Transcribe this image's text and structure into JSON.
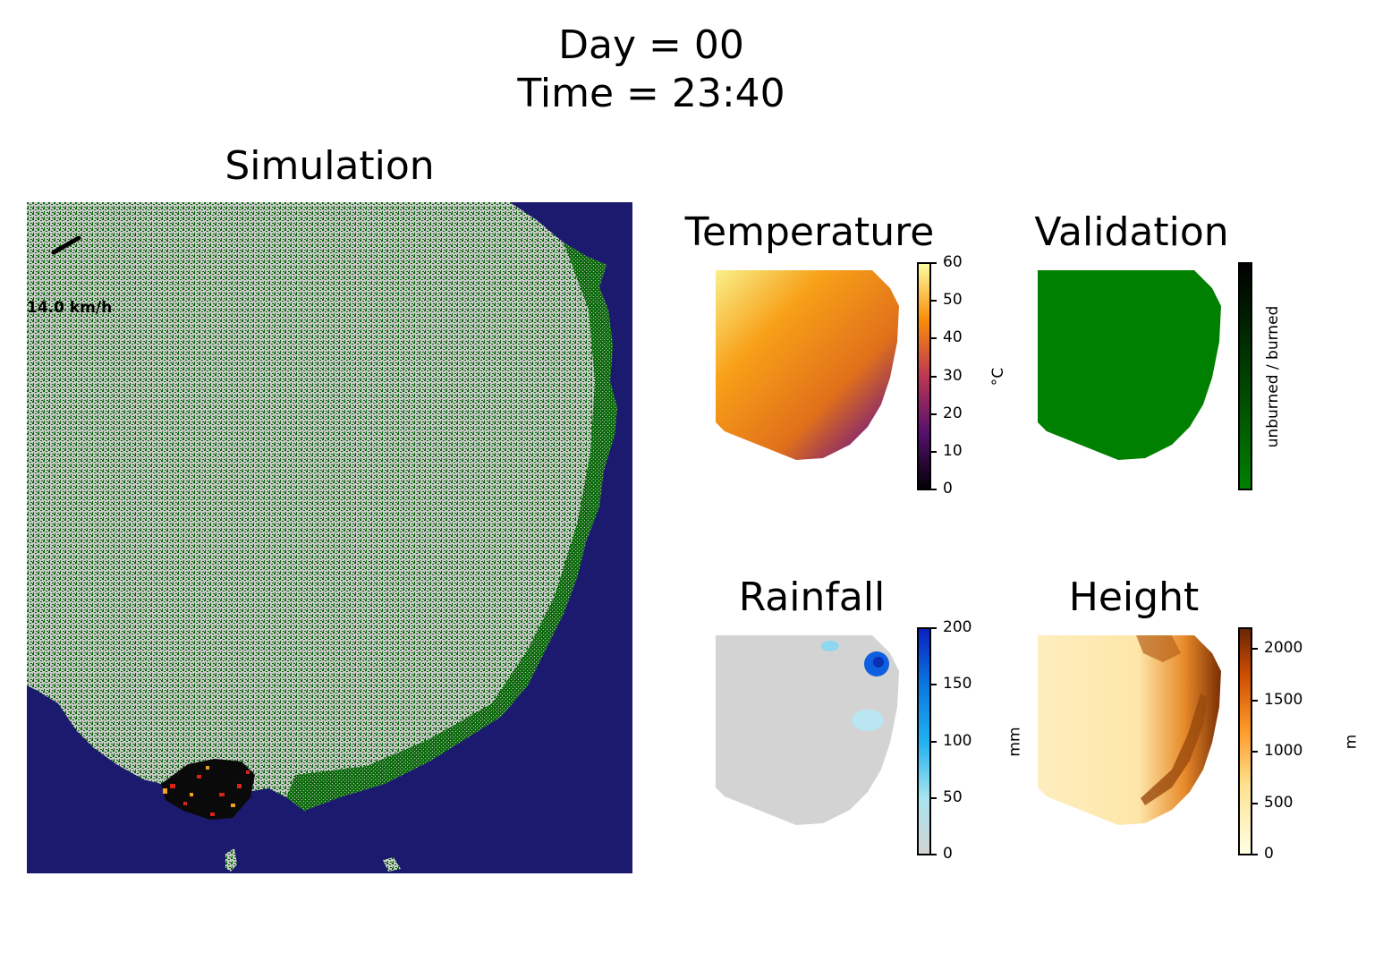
{
  "figure": {
    "title_line1": "Day = 00",
    "title_line2": "Time = 23:40"
  },
  "simulation": {
    "title": "Simulation",
    "wind_label": "14.0 km/h",
    "colors": {
      "ocean": "#1b1a6e",
      "vegetation": "#006400",
      "bare": "#c8c8c8",
      "fire_red": "#d62418",
      "fire_orange": "#f5a020",
      "burned": "#0a0a0a"
    }
  },
  "temperature": {
    "title": "Temperature",
    "unit": "°C",
    "ticks": [
      "0",
      "10",
      "20",
      "30",
      "40",
      "50",
      "60"
    ],
    "range": [
      0,
      60
    ],
    "colormap": "inferno"
  },
  "validation": {
    "title": "Validation",
    "colorbar_label": "unburned / burned",
    "colors": {
      "unburned": "#008000",
      "burned": "#000000"
    }
  },
  "rainfall": {
    "title": "Rainfall",
    "unit": "mm",
    "ticks": [
      "0",
      "50",
      "100",
      "150",
      "200"
    ],
    "range": [
      0,
      200
    ],
    "colormap": "light-grey-to-blue"
  },
  "height": {
    "title": "Height",
    "unit": "m",
    "ticks": [
      "0",
      "500",
      "1000",
      "1500",
      "2000"
    ],
    "range": [
      0,
      2200
    ],
    "colormap": "YlOrBr"
  }
}
